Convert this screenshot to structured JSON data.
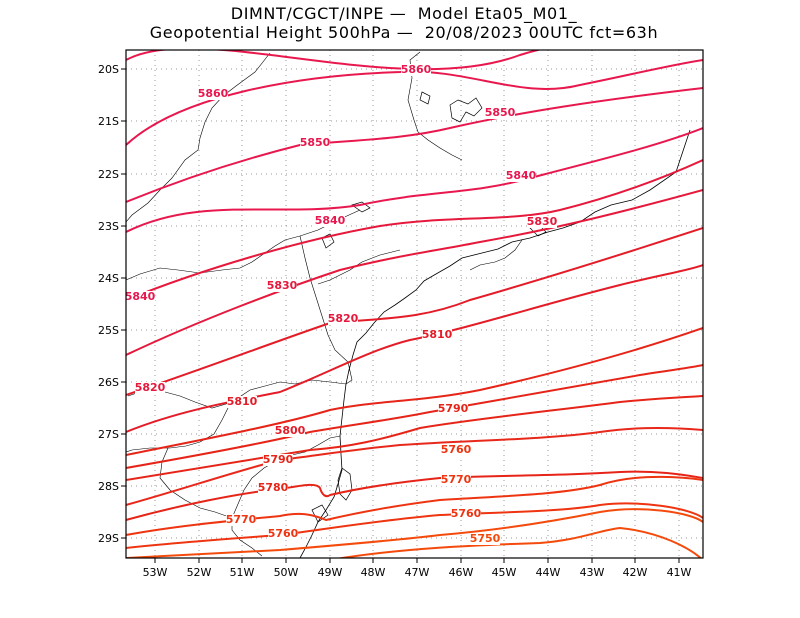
{
  "header": {
    "line1": "DIMNT/CGCT/INPE —  Model Eta05_M01_",
    "line2": "Geopotential Height 500hPa —  20/08/2023 00UTC fct=63h"
  },
  "map": {
    "x_ticks": [
      "53W",
      "52W",
      "51W",
      "50W",
      "49W",
      "48W",
      "47W",
      "46W",
      "45W",
      "44W",
      "43W",
      "42W",
      "41W"
    ],
    "y_ticks": [
      "20S",
      "21S",
      "22S",
      "23S",
      "24S",
      "25S",
      "26S",
      "27S",
      "28S",
      "29S"
    ],
    "lon_range": [
      -53.7,
      -40.4
    ],
    "lat_range": [
      -29.4,
      -19.8
    ],
    "gridlines": "dotted",
    "contour_interval": 10,
    "contours": [
      {
        "value": 5860,
        "color": "#e8184e",
        "label": "5860"
      },
      {
        "value": 5850,
        "color": "#e8184e",
        "label": "5850"
      },
      {
        "value": 5840,
        "color": "#e8184e",
        "label": "5840"
      },
      {
        "value": 5830,
        "color": "#e6183c",
        "label": "5830"
      },
      {
        "value": 5820,
        "color": "#e6183c",
        "label": "5820"
      },
      {
        "value": 5810,
        "color": "#e41c28",
        "label": "5810"
      },
      {
        "value": 5800,
        "color": "#e41c28",
        "label": "5800"
      },
      {
        "value": 5790,
        "color": "#e62418",
        "label": "5790"
      },
      {
        "value": 5780,
        "color": "#e62418",
        "label": "5780"
      },
      {
        "value": 5770,
        "color": "#ee3410",
        "label": "5770"
      },
      {
        "value": 5760,
        "color": "#ee3410",
        "label": "5760"
      },
      {
        "value": 5750,
        "color": "#f44a0c",
        "label": "5750"
      }
    ],
    "labels": [
      {
        "text": "5860",
        "color": "#e8184e"
      },
      {
        "text": "5860",
        "color": "#e8184e"
      },
      {
        "text": "5850",
        "color": "#e8184e"
      },
      {
        "text": "5850",
        "color": "#e8184e"
      },
      {
        "text": "5840",
        "color": "#e8184e"
      },
      {
        "text": "5840",
        "color": "#e8184e"
      },
      {
        "text": "5840",
        "color": "#e8184e"
      },
      {
        "text": "5830",
        "color": "#e6183c"
      },
      {
        "text": "5830",
        "color": "#e6183c"
      },
      {
        "text": "5820",
        "color": "#e6183c"
      },
      {
        "text": "5820",
        "color": "#e6183c"
      },
      {
        "text": "5810",
        "color": "#e41c28"
      },
      {
        "text": "5810",
        "color": "#e41c28"
      },
      {
        "text": "5800",
        "color": "#e41c28"
      },
      {
        "text": "5790",
        "color": "#e62418"
      },
      {
        "text": "5790",
        "color": "#e62418"
      },
      {
        "text": "5780",
        "color": "#e62418"
      },
      {
        "text": "5770",
        "color": "#ee3410"
      },
      {
        "text": "5770",
        "color": "#ee3410"
      },
      {
        "text": "5760",
        "color": "#ee3410"
      },
      {
        "text": "5760",
        "color": "#ee3410"
      },
      {
        "text": "5760",
        "color": "#ee3410"
      },
      {
        "text": "5750",
        "color": "#f44a0c"
      }
    ]
  }
}
